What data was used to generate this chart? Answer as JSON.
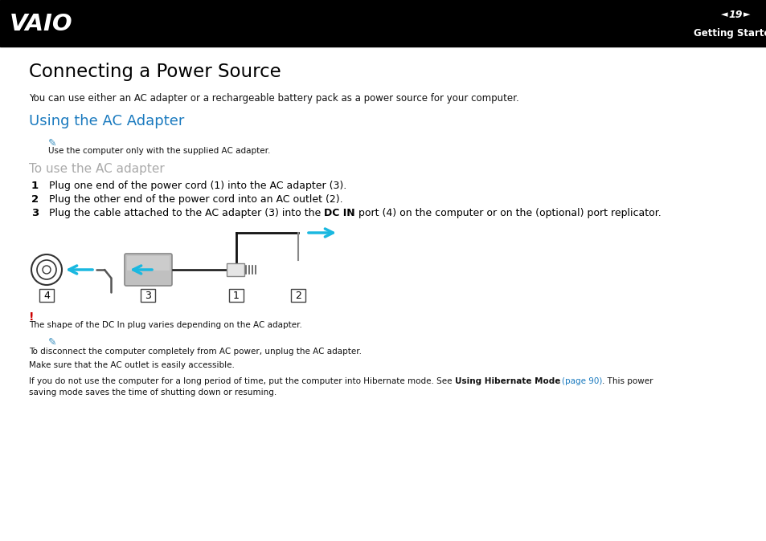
{
  "bg_color": "#ffffff",
  "header_bg": "#000000",
  "page_num": "19",
  "header_right": "Getting Started",
  "title": "Connecting a Power Source",
  "subtitle": "You can use either an AC adapter or a rechargeable battery pack as a power source for your computer.",
  "section_title": "Using the AC Adapter",
  "section_title_color": "#1a7abf",
  "note_color": "#3a8fbf",
  "note1_text": "Use the computer only with the supplied AC adapter.",
  "subsection_title": "To use the AC adapter",
  "subsection_color": "#aaaaaa",
  "step1_num": "1",
  "step1_text": "Plug one end of the power cord (1) into the AC adapter (3).",
  "step2_num": "2",
  "step2_text": "Plug the other end of the power cord into an AC outlet (2).",
  "step3_num": "3",
  "step3_pre": "Plug the cable attached to the AC adapter (3) into the ",
  "step3_bold": "DC IN",
  "step3_post": " port (4) on the computer or on the (optional) port replicator.",
  "warning_color": "#cc0000",
  "warning_text": "The shape of the DC In plug varies depending on the AC adapter.",
  "note2_text": "To disconnect the computer completely from AC power, unplug the AC adapter.",
  "note3_text": "Make sure that the AC outlet is easily accessible.",
  "note4_pre": "If you do not use the computer for a long period of time, put the computer into Hibernate mode. See ",
  "note4_bold": "Using Hibernate Mode",
  "note4_link": "(page 90)",
  "note4_link_color": "#1a7abf",
  "note4_post": ". This power",
  "note4_line2": "saving mode saves the time of shutting down or resuming.",
  "diag_arrow_color": "#1ab8e0",
  "diag_line_color": "#111111",
  "adapter_fill": "#c0c0c0",
  "adapter_edge": "#888888",
  "label_edge": "#444444"
}
